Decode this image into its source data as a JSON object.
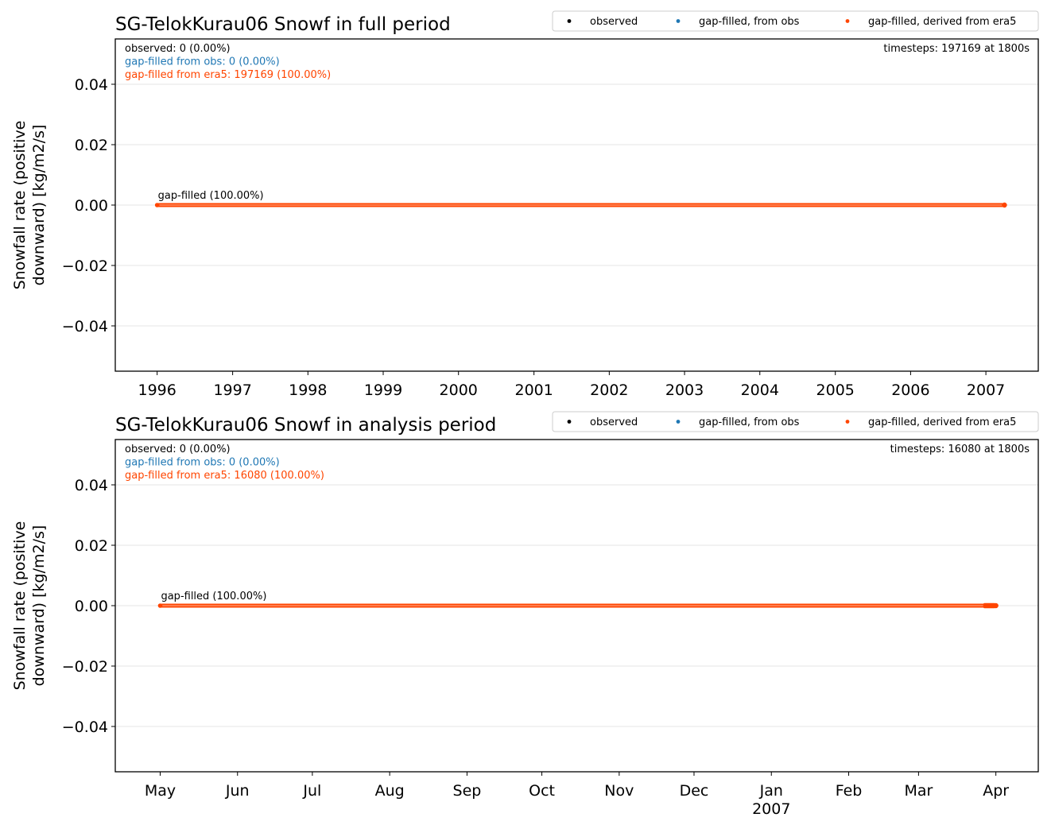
{
  "chart_data": [
    {
      "type": "scatter",
      "title": "SG-TelokKurau06 Snowf in full period",
      "ylabel_line1": "Snowfall rate (positive",
      "ylabel_line2": "downward) [kg/m2/s]",
      "x_range": [
        "1995-06-12",
        "2007-09-12"
      ],
      "ylim": [
        -0.055,
        0.055
      ],
      "yticks": [
        -0.04,
        -0.02,
        0.0,
        0.02,
        0.04
      ],
      "ytick_labels": [
        "−0.04",
        "−0.02",
        "0.00",
        "0.02",
        "0.04"
      ],
      "xticks": [
        {
          "x": "1996-01-01",
          "label": "1996"
        },
        {
          "x": "1997-01-01",
          "label": "1997"
        },
        {
          "x": "1998-01-01",
          "label": "1998"
        },
        {
          "x": "1999-01-01",
          "label": "1999"
        },
        {
          "x": "2000-01-01",
          "label": "2000"
        },
        {
          "x": "2001-01-01",
          "label": "2001"
        },
        {
          "x": "2002-01-01",
          "label": "2002"
        },
        {
          "x": "2003-01-01",
          "label": "2003"
        },
        {
          "x": "2004-01-01",
          "label": "2004"
        },
        {
          "x": "2005-01-01",
          "label": "2005"
        },
        {
          "x": "2006-01-01",
          "label": "2006"
        },
        {
          "x": "2007-01-01",
          "label": "2007"
        }
      ],
      "grid": true,
      "legend_placement": "top-right",
      "legend": [
        {
          "label": "observed",
          "color": "#000000"
        },
        {
          "label": "gap-filled, from obs",
          "color": "#1f77b4"
        },
        {
          "label": "gap-filled, derived from era5",
          "color": "#ff4500"
        }
      ],
      "stats": [
        {
          "text": "observed: 0 (0.00%)",
          "color": "#000000"
        },
        {
          "text": "gap-filled from obs: 0 (0.00%)",
          "color": "#1f77b4"
        },
        {
          "text": "gap-filled from era5: 197169 (100.00%)",
          "color": "#ff4500"
        }
      ],
      "timesteps_text": "timesteps: 197169 at 1800s",
      "annotation": "gap-filled (100.00%)",
      "series": [
        {
          "name": "gap-filled, derived from era5",
          "color": "#ff4500",
          "x_start": "1996-01-01",
          "x_end": "2007-04-01",
          "y": 0.0
        }
      ]
    },
    {
      "type": "scatter",
      "title": "SG-TelokKurau06 Snowf in analysis period",
      "ylabel_line1": "Snowfall rate (positive",
      "ylabel_line2": "downward) [kg/m2/s]",
      "x_range": [
        "2006-04-13",
        "2007-04-18"
      ],
      "ylim": [
        -0.055,
        0.055
      ],
      "yticks": [
        -0.04,
        -0.02,
        0.0,
        0.02,
        0.04
      ],
      "ytick_labels": [
        "−0.04",
        "−0.02",
        "0.00",
        "0.02",
        "0.04"
      ],
      "xticks": [
        {
          "x": "2006-05-01",
          "label": "May"
        },
        {
          "x": "2006-06-01",
          "label": "Jun"
        },
        {
          "x": "2006-07-01",
          "label": "Jul"
        },
        {
          "x": "2006-08-01",
          "label": "Aug"
        },
        {
          "x": "2006-09-01",
          "label": "Sep"
        },
        {
          "x": "2006-10-01",
          "label": "Oct"
        },
        {
          "x": "2006-11-01",
          "label": "Nov"
        },
        {
          "x": "2006-12-01",
          "label": "Dec"
        },
        {
          "x": "2007-01-01",
          "label": "Jan",
          "label2": "2007"
        },
        {
          "x": "2007-02-01",
          "label": "Feb"
        },
        {
          "x": "2007-03-01",
          "label": "Mar"
        },
        {
          "x": "2007-04-01",
          "label": "Apr"
        }
      ],
      "grid": true,
      "legend_placement": "top-right",
      "legend": [
        {
          "label": "observed",
          "color": "#000000"
        },
        {
          "label": "gap-filled, from obs",
          "color": "#1f77b4"
        },
        {
          "label": "gap-filled, derived from era5",
          "color": "#ff4500"
        }
      ],
      "stats": [
        {
          "text": "observed: 0 (0.00%)",
          "color": "#000000"
        },
        {
          "text": "gap-filled from obs: 0 (0.00%)",
          "color": "#1f77b4"
        },
        {
          "text": "gap-filled from era5: 16080 (100.00%)",
          "color": "#ff4500"
        }
      ],
      "timesteps_text": "timesteps: 16080 at 1800s",
      "annotation": "gap-filled (100.00%)",
      "series": [
        {
          "name": "gap-filled, derived from era5",
          "color": "#ff4500",
          "x_start": "2006-05-01",
          "x_end": "2007-04-01",
          "y": 0.0
        }
      ]
    }
  ]
}
